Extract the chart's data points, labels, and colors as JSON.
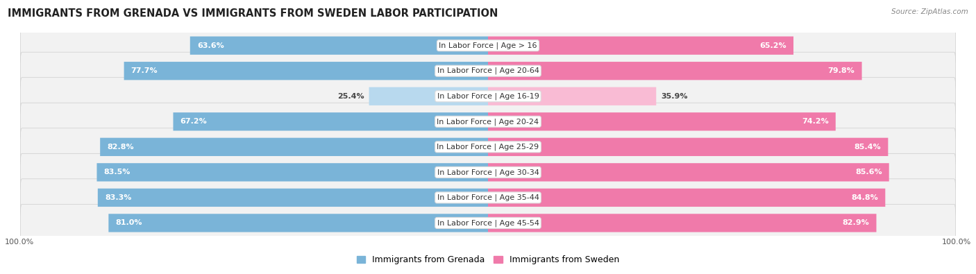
{
  "title": "IMMIGRANTS FROM GRENADA VS IMMIGRANTS FROM SWEDEN LABOR PARTICIPATION",
  "source": "Source: ZipAtlas.com",
  "categories": [
    "In Labor Force | Age > 16",
    "In Labor Force | Age 20-64",
    "In Labor Force | Age 16-19",
    "In Labor Force | Age 20-24",
    "In Labor Force | Age 25-29",
    "In Labor Force | Age 30-34",
    "In Labor Force | Age 35-44",
    "In Labor Force | Age 45-54"
  ],
  "grenada_values": [
    63.6,
    77.7,
    25.4,
    67.2,
    82.8,
    83.5,
    83.3,
    81.0
  ],
  "sweden_values": [
    65.2,
    79.8,
    35.9,
    74.2,
    85.4,
    85.6,
    84.8,
    82.9
  ],
  "grenada_color": "#7ab4d8",
  "sweden_color": "#f07aaa",
  "grenada_color_light": "#b8d9ee",
  "sweden_color_light": "#f9bbd4",
  "row_bg_light": "#f0f0f0",
  "row_bg_dark": "#e8e8e8",
  "title_fontsize": 10.5,
  "bar_fontsize": 8.0,
  "cat_fontsize": 8.0,
  "legend_fontsize": 9,
  "max_value": 100.0,
  "grenada_label": "Immigrants from Grenada",
  "sweden_label": "Immigrants from Sweden"
}
